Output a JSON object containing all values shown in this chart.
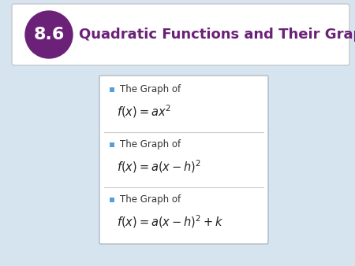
{
  "bg_color": "#d6e4f0",
  "header_bg": "#ffffff",
  "header_border": "#c8c8c8",
  "header_text": "Quadratic Functions and Their Graphs",
  "header_text_color": "#6b2177",
  "header_number": "8.6",
  "circle_color": "#6b2177",
  "circle_text_color": "#ffffff",
  "box_bg": "#ffffff",
  "box_border": "#b0b8c0",
  "bullet_color": "#5a9fd4",
  "item1_label": "The Graph of",
  "item1_formula": "$f(x) = ax^2$",
  "item2_label": "The Graph of",
  "item2_formula": "$f(x) = a(x - h)^2$",
  "item3_label": "The Graph of",
  "item3_formula": "$f(x) = a(x - h)^2 + k$",
  "divider_color": "#cccccc",
  "text_color": "#333333",
  "formula_color": "#222222",
  "fig_width": 4.5,
  "fig_height": 3.38,
  "dpi": 100
}
